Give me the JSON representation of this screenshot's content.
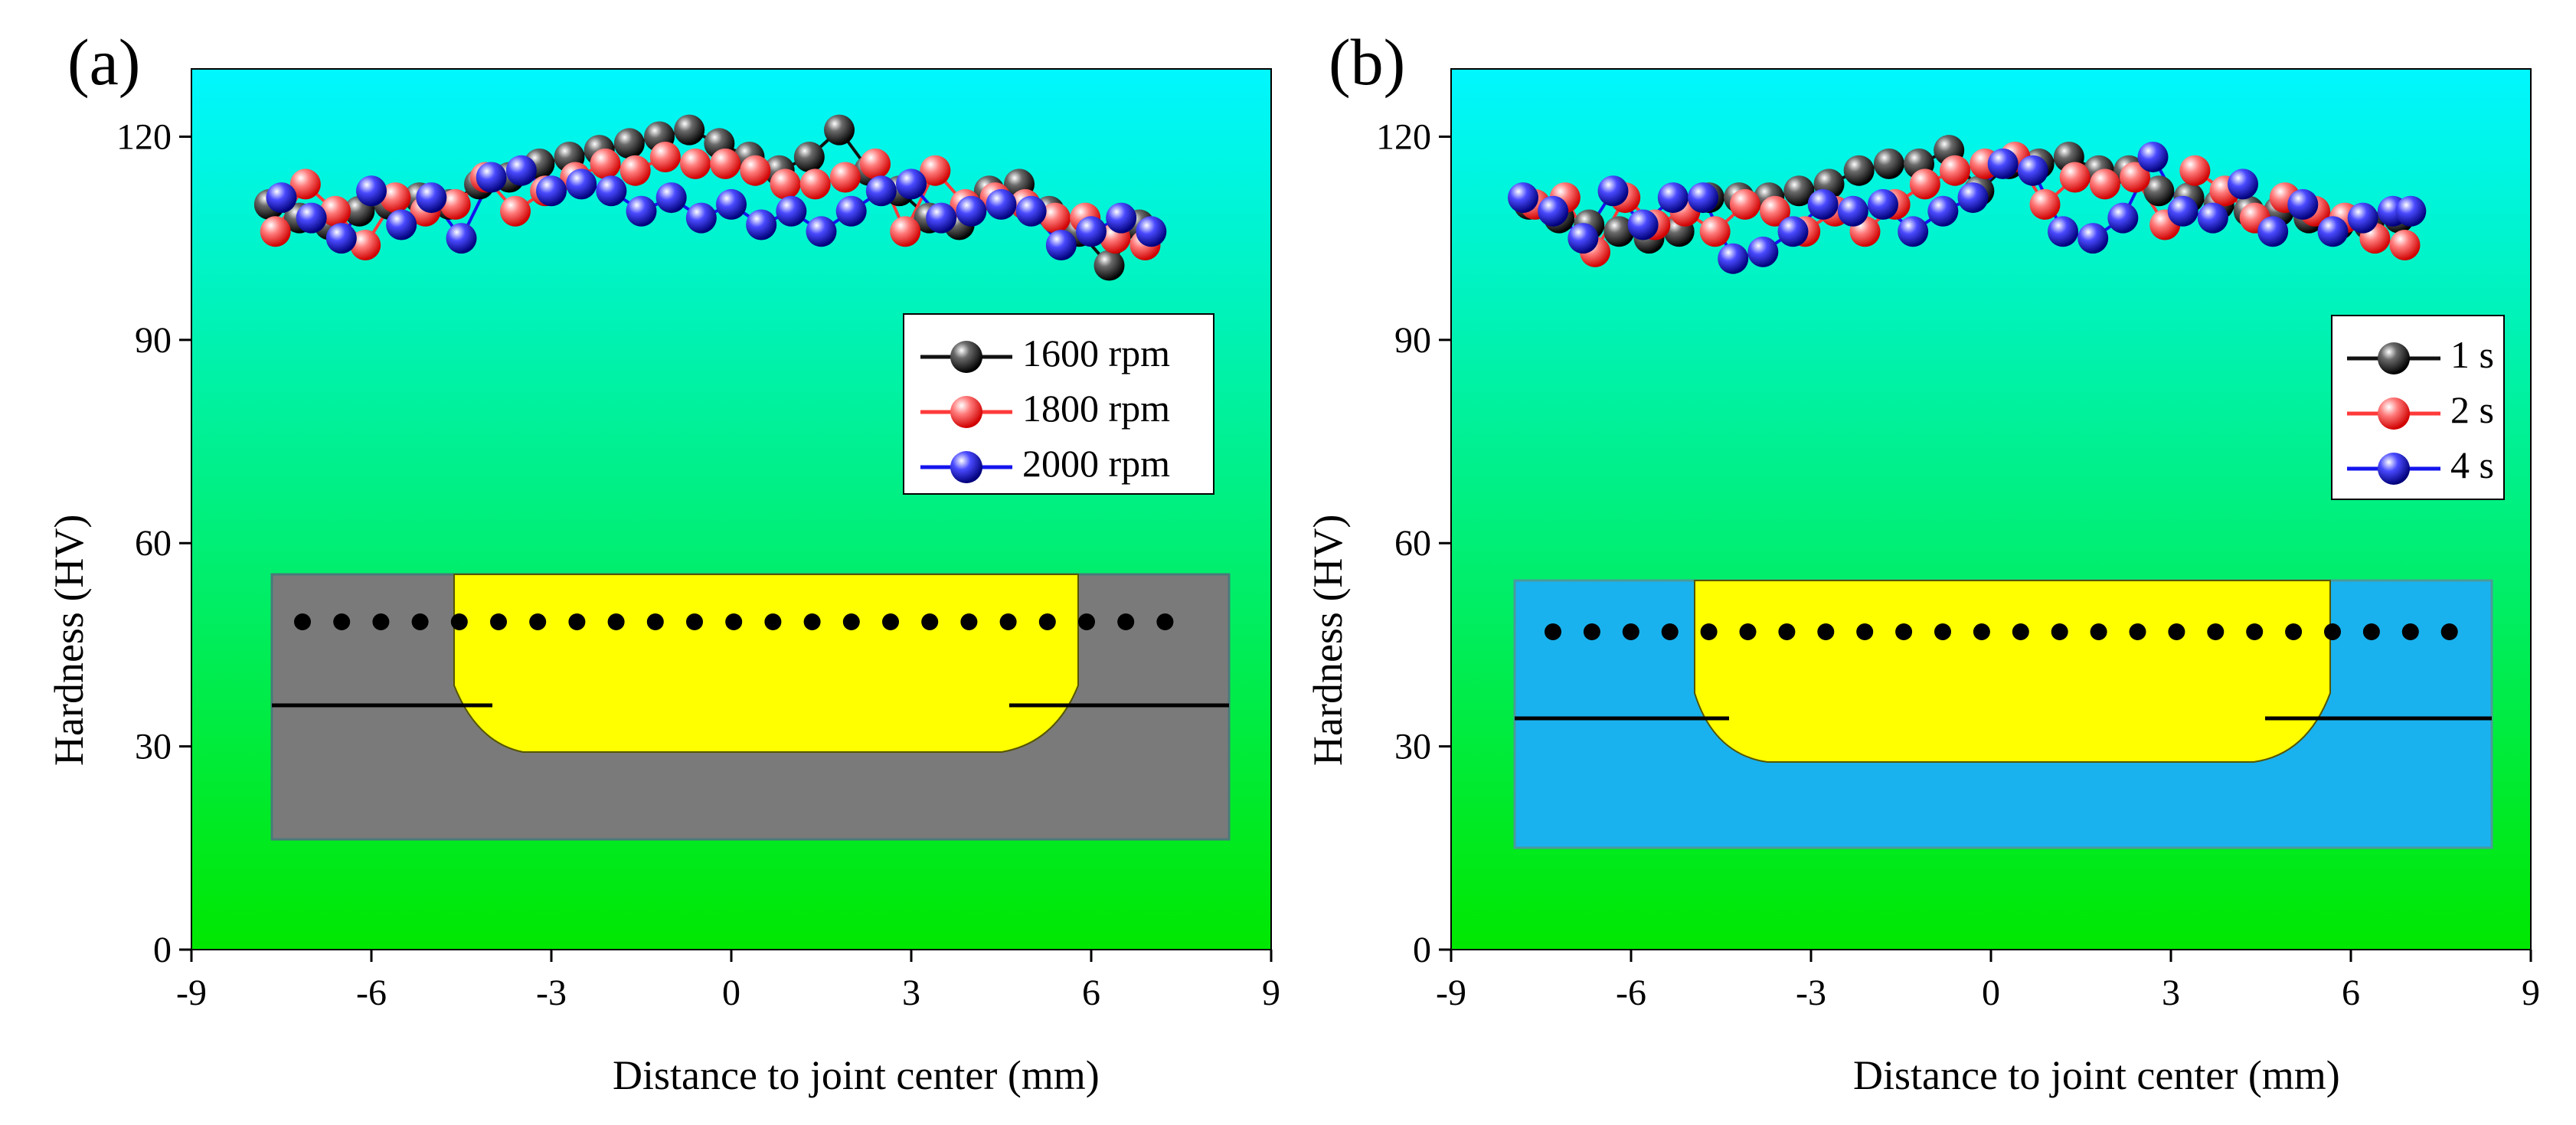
{
  "figure": {
    "marker_icon": "sphere-marker-icon",
    "background_gradient": [
      "#00F7FF",
      "#00E800"
    ],
    "series_colors": [
      "#111111",
      "#FF3A3A",
      "#1414EE"
    ]
  },
  "chart_data": [
    {
      "type": "scatter",
      "panel_label": "(a)",
      "xlabel": "Distance to joint center (mm)",
      "ylabel": "Hardness (HV)",
      "xlim": [
        -9,
        9
      ],
      "ylim": [
        0,
        130
      ],
      "xticks": [
        -9,
        -6,
        -3,
        0,
        3,
        6,
        9
      ],
      "yticks": [
        0,
        30,
        60,
        90,
        120
      ],
      "legend": {
        "position": "right-middle"
      },
      "series": [
        {
          "name": "1600 rpm",
          "color": "#111111",
          "x": [
            -7.7,
            -7.2,
            -6.7,
            -6.2,
            -5.7,
            -5.2,
            -4.7,
            -4.2,
            -3.7,
            -3.2,
            -2.7,
            -2.2,
            -1.7,
            -1.2,
            -0.7,
            -0.2,
            0.3,
            0.8,
            1.3,
            1.8,
            2.3,
            2.8,
            3.3,
            3.8,
            4.3,
            4.8,
            5.3,
            5.8,
            6.3,
            6.8
          ],
          "y": [
            110,
            108,
            107,
            109,
            110,
            111,
            110,
            113,
            114,
            116,
            117,
            118,
            119,
            120,
            121,
            119,
            117,
            115,
            117,
            121,
            115,
            112,
            108,
            107,
            112,
            113,
            109,
            106,
            101,
            107
          ]
        },
        {
          "name": "1800 rpm",
          "color": "#FF3A3A",
          "x": [
            -7.6,
            -7.1,
            -6.6,
            -6.1,
            -5.6,
            -5.1,
            -4.6,
            -4.1,
            -3.6,
            -3.1,
            -2.6,
            -2.1,
            -1.6,
            -1.1,
            -0.6,
            -0.1,
            0.4,
            0.9,
            1.4,
            1.9,
            2.4,
            2.9,
            3.4,
            3.9,
            4.4,
            4.9,
            5.4,
            5.9,
            6.4,
            6.9
          ],
          "y": [
            106,
            113,
            109,
            104,
            111,
            109,
            110,
            114,
            109,
            112,
            114,
            116,
            115,
            117,
            116,
            116,
            115,
            113,
            113,
            114,
            116,
            106,
            115,
            110,
            111,
            110,
            108,
            108,
            105,
            104
          ]
        },
        {
          "name": "2000 rpm",
          "color": "#1414EE",
          "x": [
            -7.5,
            -7.0,
            -6.5,
            -6.0,
            -5.5,
            -5.0,
            -4.5,
            -4.0,
            -3.5,
            -3.0,
            -2.5,
            -2.0,
            -1.5,
            -1.0,
            -0.5,
            0.0,
            0.5,
            1.0,
            1.5,
            2.0,
            2.5,
            3.0,
            3.5,
            4.0,
            4.5,
            5.0,
            5.5,
            6.0,
            6.5,
            7.0
          ],
          "y": [
            111,
            108,
            105,
            112,
            107,
            111,
            105,
            114,
            115,
            112,
            113,
            112,
            109,
            111,
            108,
            110,
            107,
            109,
            106,
            109,
            112,
            113,
            108,
            109,
            110,
            109,
            104,
            106,
            108,
            106
          ]
        }
      ]
    },
    {
      "type": "scatter",
      "panel_label": "(b)",
      "xlabel": "Distance to joint center (mm)",
      "ylabel": "Hardness (HV)",
      "xlim": [
        -9,
        9
      ],
      "ylim": [
        0,
        130
      ],
      "xticks": [
        -9,
        -6,
        -3,
        0,
        3,
        6,
        9
      ],
      "yticks": [
        0,
        30,
        60,
        90,
        120
      ],
      "legend": {
        "position": "right-middle"
      },
      "series": [
        {
          "name": "1 s",
          "color": "#111111",
          "x": [
            -7.7,
            -7.2,
            -6.7,
            -6.2,
            -5.7,
            -5.2,
            -4.7,
            -4.2,
            -3.7,
            -3.2,
            -2.7,
            -2.2,
            -1.7,
            -1.2,
            -0.7,
            -0.2,
            0.3,
            0.8,
            1.3,
            1.8,
            2.3,
            2.8,
            3.3,
            3.8,
            4.3,
            4.8,
            5.3,
            5.8,
            6.3,
            6.8
          ],
          "y": [
            110,
            108,
            107,
            106,
            105,
            106,
            111,
            111,
            111,
            112,
            113,
            115,
            116,
            116,
            118,
            112,
            116,
            116,
            117,
            115,
            115,
            112,
            111,
            110,
            109,
            109,
            108,
            107,
            107,
            108
          ]
        },
        {
          "name": "2 s",
          "color": "#FF3A3A",
          "x": [
            -7.6,
            -7.1,
            -6.6,
            -6.1,
            -5.6,
            -5.1,
            -4.6,
            -4.1,
            -3.6,
            -3.1,
            -2.6,
            -2.1,
            -1.6,
            -1.1,
            -0.6,
            -0.1,
            0.4,
            0.9,
            1.4,
            1.9,
            2.4,
            2.9,
            3.4,
            3.9,
            4.4,
            4.9,
            5.4,
            5.9,
            6.4,
            6.9
          ],
          "y": [
            110,
            111,
            103,
            111,
            107,
            109,
            106,
            110,
            109,
            106,
            109,
            106,
            110,
            113,
            115,
            116,
            117,
            110,
            114,
            113,
            114,
            107,
            115,
            112,
            108,
            111,
            109,
            108,
            105,
            104
          ]
        },
        {
          "name": "4 s",
          "color": "#1414EE",
          "x": [
            -7.8,
            -7.3,
            -6.8,
            -6.3,
            -5.8,
            -5.3,
            -4.8,
            -4.3,
            -3.8,
            -3.3,
            -2.8,
            -2.3,
            -1.8,
            -1.3,
            -0.8,
            -0.3,
            0.2,
            0.7,
            1.2,
            1.7,
            2.2,
            2.7,
            3.2,
            3.7,
            4.2,
            4.7,
            5.2,
            5.7,
            6.2,
            6.7,
            7.0
          ],
          "y": [
            111,
            109,
            105,
            112,
            107,
            111,
            111,
            102,
            103,
            106,
            110,
            109,
            110,
            106,
            109,
            111,
            116,
            115,
            106,
            105,
            108,
            117,
            109,
            108,
            113,
            106,
            110,
            106,
            108,
            109,
            109
          ]
        }
      ]
    }
  ]
}
